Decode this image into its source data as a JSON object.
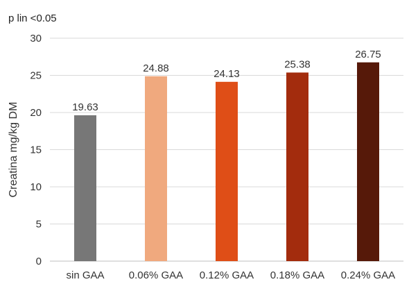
{
  "chart_data": {
    "type": "bar",
    "annotation": "p lin <0.05",
    "ylabel": "Creatina mg/kg DM",
    "xlabel": "",
    "ylim": [
      0,
      30
    ],
    "yticks": [
      0,
      5,
      10,
      15,
      20,
      25,
      30
    ],
    "categories": [
      "sin GAA",
      "0.06% GAA",
      "0.12% GAA",
      "0.18% GAA",
      "0.24% GAA"
    ],
    "values": [
      19.63,
      24.88,
      24.13,
      25.38,
      26.75
    ],
    "data_labels": [
      "19.63",
      "24.88",
      "24.13",
      "25.38",
      "26.75"
    ],
    "colors": [
      "#777777",
      "#f0a97e",
      "#df4e17",
      "#a32c0d",
      "#561909"
    ],
    "grid": true,
    "legend": "none"
  }
}
